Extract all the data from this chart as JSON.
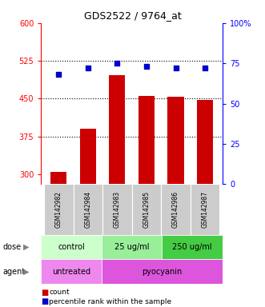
{
  "title": "GDS2522 / 9764_at",
  "samples": [
    "GSM142982",
    "GSM142984",
    "GSM142983",
    "GSM142985",
    "GSM142986",
    "GSM142987"
  ],
  "bar_values": [
    305,
    390,
    497,
    455,
    453,
    447
  ],
  "dot_values": [
    68,
    72,
    75,
    73,
    72,
    72
  ],
  "bar_color": "#cc0000",
  "dot_color": "#0000cc",
  "ylim_left": [
    280,
    600
  ],
  "ylim_right": [
    0,
    100
  ],
  "yticks_left": [
    300,
    375,
    450,
    525,
    600
  ],
  "yticks_right": [
    0,
    25,
    50,
    75,
    100
  ],
  "hlines": [
    375,
    450,
    525
  ],
  "dose_labels": [
    {
      "text": "control",
      "span": [
        0,
        2
      ],
      "color": "#ccffcc"
    },
    {
      "text": "25 ug/ml",
      "span": [
        2,
        4
      ],
      "color": "#99ee99"
    },
    {
      "text": "250 ug/ml",
      "span": [
        4,
        6
      ],
      "color": "#44cc44"
    }
  ],
  "agent_labels": [
    {
      "text": "untreated",
      "span": [
        0,
        2
      ],
      "color": "#ee88ee"
    },
    {
      "text": "pyocyanin",
      "span": [
        2,
        6
      ],
      "color": "#dd55dd"
    }
  ],
  "dose_label": "dose",
  "agent_label": "agent",
  "legend_count": "count",
  "legend_pct": "percentile rank within the sample",
  "sample_bg": "#cccccc"
}
